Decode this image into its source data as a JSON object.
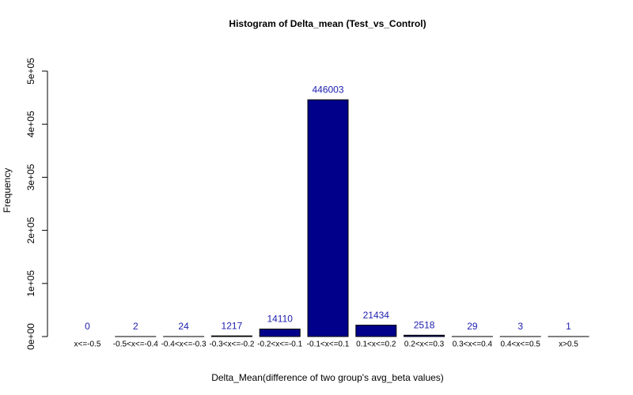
{
  "chart_data": {
    "type": "bar",
    "title": "Histogram of Delta_mean (Test_vs_Control)",
    "xlabel": "Delta_Mean(difference of two group's avg_beta values)",
    "ylabel": "Frequency",
    "categories": [
      "x<=-0.5",
      "-0.5<x<=-0.4",
      "-0.4<x<=-0.3",
      "-0.3<x<=-0.2",
      "-0.2<x<=-0.1",
      "-0.1<x<=0.1",
      "0.1<x<=0.2",
      "0.2<x<=0.3",
      "0.3<x<=0.4",
      "0.4<x<=0.5",
      "x>0.5"
    ],
    "values": [
      0,
      2,
      24,
      1217,
      14110,
      446003,
      21434,
      2518,
      29,
      3,
      1
    ],
    "color": "#00008b",
    "ylim": [
      0,
      500000
    ],
    "yticks": [
      {
        "value": 0,
        "label": "0e+00"
      },
      {
        "value": 100000,
        "label": "1e+05"
      },
      {
        "value": 200000,
        "label": "2e+05"
      },
      {
        "value": 300000,
        "label": "3e+05"
      },
      {
        "value": 400000,
        "label": "4e+05"
      },
      {
        "value": 500000,
        "label": "5e+05"
      }
    ]
  }
}
